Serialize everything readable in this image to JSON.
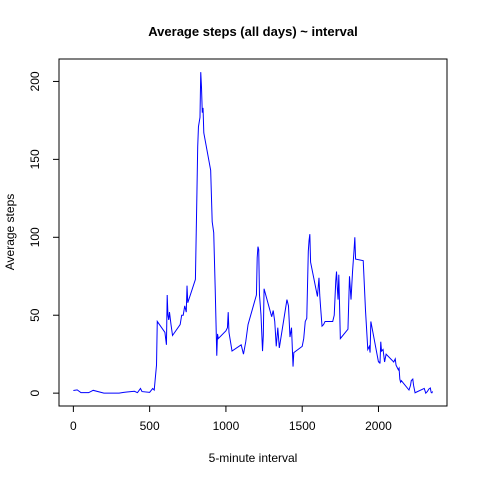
{
  "chart_data": {
    "type": "line",
    "title": "Average steps (all days) ~ interval",
    "x_label": "5-minute interval",
    "y_label": "Average steps",
    "xlim": [
      -94.2,
      2449.2
    ],
    "ylim": [
      -8.25,
      214.4
    ],
    "xticks": [
      0,
      500,
      1000,
      1500,
      2000
    ],
    "yticks": [
      0,
      50,
      100,
      150,
      200
    ],
    "grid": false,
    "series": [
      {
        "name": "Average steps",
        "color": "#0000ff",
        "x": [
          0,
          25,
          50,
          100,
          130,
          200,
          230,
          300,
          330,
          400,
          420,
          440,
          450,
          500,
          520,
          530,
          545,
          550,
          600,
          610,
          615,
          620,
          625,
          630,
          640,
          650,
          700,
          710,
          720,
          730,
          740,
          745,
          750,
          800,
          810,
          815,
          820,
          830,
          835,
          840,
          845,
          850,
          855,
          900,
          910,
          920,
          930,
          935,
          940,
          945,
          950,
          1000,
          1010,
          1015,
          1020,
          1030,
          1040,
          1100,
          1115,
          1130,
          1145,
          1200,
          1205,
          1210,
          1215,
          1220,
          1230,
          1240,
          1245,
          1250,
          1300,
          1310,
          1320,
          1330,
          1340,
          1350,
          1400,
          1410,
          1420,
          1430,
          1440,
          1445,
          1500,
          1510,
          1520,
          1530,
          1540,
          1545,
          1550,
          1555,
          1600,
          1610,
          1615,
          1620,
          1630,
          1640,
          1650,
          1700,
          1710,
          1720,
          1725,
          1730,
          1735,
          1740,
          1745,
          1750,
          1800,
          1810,
          1820,
          1830,
          1840,
          1845,
          1850,
          1900,
          1915,
          1930,
          1940,
          1945,
          1950,
          2000,
          2005,
          2010,
          2015,
          2020,
          2030,
          2040,
          2050,
          2100,
          2110,
          2115,
          2130,
          2135,
          2140,
          2145,
          2150,
          2200,
          2210,
          2215,
          2225,
          2230,
          2240,
          2245,
          2300,
          2310,
          2320,
          2330,
          2340,
          2345,
          2350,
          2355
        ],
        "values": [
          1.7,
          2.1,
          0.3,
          0.3,
          1.8,
          0,
          0,
          0,
          0.5,
          1.2,
          0.3,
          3,
          1,
          0.5,
          3,
          2,
          18,
          46,
          39,
          31,
          63,
          50,
          47,
          52,
          44,
          37,
          44,
          50,
          50,
          56,
          52,
          69,
          58,
          73,
          129,
          158,
          171,
          177,
          206,
          196,
          180,
          183,
          167,
          143,
          110,
          103,
          66,
          45,
          24,
          38,
          35,
          40,
          42,
          52,
          39,
          33,
          27,
          31,
          25,
          33,
          44,
          63,
          87,
          94,
          92,
          63,
          50,
          27,
          37,
          67,
          49,
          53,
          46,
          30,
          42,
          29,
          60,
          56,
          36,
          42,
          17,
          26,
          30,
          35,
          46,
          48,
          91,
          98,
          102,
          84,
          62,
          74,
          63,
          56,
          43,
          44,
          46,
          46,
          50,
          72,
          78,
          68,
          60,
          76,
          56,
          35,
          41,
          75,
          60,
          78,
          92,
          100,
          86,
          85,
          53,
          28,
          30,
          26,
          46,
          20,
          20,
          19,
          33,
          27,
          28,
          20,
          25,
          20,
          22,
          18,
          15,
          16,
          9,
          7,
          8,
          2,
          5,
          8,
          9,
          5,
          0.2,
          0.5,
          3,
          0,
          1,
          2.6,
          3.3,
          0.6,
          0.2,
          1.1
        ]
      }
    ]
  }
}
